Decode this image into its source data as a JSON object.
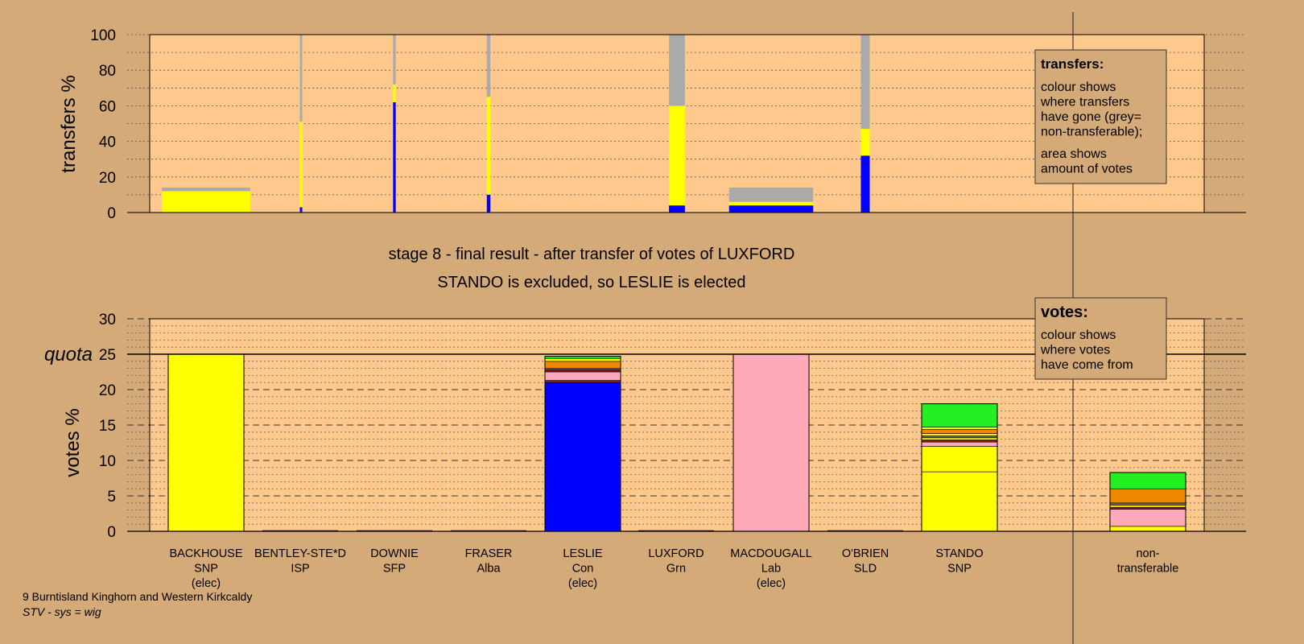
{
  "chart_data": {
    "type": "bar",
    "stage_line1": "stage 8 - final result - after transfer of votes of LUXFORD",
    "stage_line2": "STANDO is excluded, so LESLIE is elected",
    "colors": {
      "Con": "#0000ff",
      "SNP": "#ffff00",
      "Lab": "#ffaabb",
      "Grn": "#22ee22",
      "LD": "#ee8800",
      "other1": "#8b1a1a",
      "other2": "#666666",
      "nontransferable": "#aaaaaa",
      "plot_bg": "#ffc98e",
      "page_bg": "#d4aa78"
    },
    "candidates": [
      {
        "name": "BACKHOUSE",
        "party": "SNP",
        "status": "(elec)"
      },
      {
        "name": "BENTLEY-STE*D",
        "party": "ISP",
        "status": ""
      },
      {
        "name": "DOWNIE",
        "party": "SFP",
        "status": ""
      },
      {
        "name": "FRASER",
        "party": "Alba",
        "status": ""
      },
      {
        "name": "LESLIE",
        "party": "Con",
        "status": "(elec)"
      },
      {
        "name": "LUXFORD",
        "party": "Grn",
        "status": ""
      },
      {
        "name": "MACDOUGALL",
        "party": "Lab",
        "status": "(elec)"
      },
      {
        "name": "O'BRIEN",
        "party": "SLD",
        "status": ""
      },
      {
        "name": "STANDO",
        "party": "SNP",
        "status": ""
      },
      {
        "name": "non-",
        "party": "transferable",
        "status": ""
      }
    ],
    "transfers_chart": {
      "ylabel": "transfers %",
      "ylim": [
        0,
        100
      ],
      "yticks": [
        0,
        20,
        40,
        60,
        80,
        100
      ],
      "bars": [
        {
          "candidate": "BACKHOUSE",
          "width_share": 1.0,
          "segments": [
            {
              "party": "SNP",
              "value": 12
            },
            {
              "party": "nontransferable",
              "value": 2
            }
          ]
        },
        {
          "candidate": "BENTLEY-STE*D",
          "width_share": 0.02,
          "segments": [
            {
              "party": "Con",
              "value": 3
            },
            {
              "party": "SNP",
              "value": 48
            },
            {
              "party": "nontransferable",
              "value": 49
            }
          ]
        },
        {
          "candidate": "DOWNIE",
          "width_share": 0.03,
          "segments": [
            {
              "party": "Con",
              "value": 62
            },
            {
              "party": "SNP",
              "value": 10
            },
            {
              "party": "nontransferable",
              "value": 28
            }
          ]
        },
        {
          "candidate": "FRASER",
          "width_share": 0.04,
          "segments": [
            {
              "party": "Con",
              "value": 10
            },
            {
              "party": "SNP",
              "value": 55
            },
            {
              "party": "nontransferable",
              "value": 35
            }
          ]
        },
        {
          "candidate": "O'BRIEN",
          "width_share": 0.18,
          "segments": [
            {
              "party": "Con",
              "value": 4
            },
            {
              "party": "SNP",
              "value": 56
            },
            {
              "party": "nontransferable",
              "value": 40
            }
          ]
        },
        {
          "candidate": "MACDOUGALL",
          "width_share": 0.95,
          "segments": [
            {
              "party": "Con",
              "value": 4
            },
            {
              "party": "SNP",
              "value": 2
            },
            {
              "party": "nontransferable",
              "value": 8
            }
          ]
        },
        {
          "candidate": "STANDO",
          "width_share": 0.1,
          "segments": [
            {
              "party": "Con",
              "value": 32
            },
            {
              "party": "SNP",
              "value": 15
            },
            {
              "party": "nontransferable",
              "value": 53
            }
          ]
        }
      ]
    },
    "votes_chart": {
      "ylabel": "votes %",
      "quota_label": "quota",
      "quota": 25,
      "ylim": [
        0,
        30
      ],
      "yticks": [
        0,
        5,
        10,
        15,
        20,
        25,
        30
      ],
      "bars": [
        {
          "candidate": "BACKHOUSE",
          "segments": [
            {
              "party": "SNP",
              "value": 25.0
            }
          ]
        },
        {
          "candidate": "BENTLEY-STE*D",
          "segments": []
        },
        {
          "candidate": "DOWNIE",
          "segments": []
        },
        {
          "candidate": "FRASER",
          "segments": []
        },
        {
          "candidate": "LESLIE",
          "segments": [
            {
              "party": "Con",
              "value": 21.0
            },
            {
              "party": "other1",
              "value": 0.3
            },
            {
              "party": "Lab",
              "value": 1.2
            },
            {
              "party": "other1",
              "value": 0.3
            },
            {
              "party": "other2",
              "value": 0.2
            },
            {
              "party": "LD",
              "value": 1.0
            },
            {
              "party": "SNP",
              "value": 0.4
            },
            {
              "party": "Grn",
              "value": 0.3
            }
          ]
        },
        {
          "candidate": "LUXFORD",
          "segments": []
        },
        {
          "candidate": "MACDOUGALL",
          "segments": [
            {
              "party": "Lab",
              "value": 25.0
            }
          ]
        },
        {
          "candidate": "O'BRIEN",
          "segments": []
        },
        {
          "candidate": "STANDO",
          "segments": [
            {
              "party": "SNP",
              "value": 8.4
            },
            {
              "party": "SNP",
              "value": 3.6
            },
            {
              "party": "Lab",
              "value": 0.6
            },
            {
              "party": "other1",
              "value": 0.3
            },
            {
              "party": "SNP",
              "value": 0.3
            },
            {
              "party": "other2",
              "value": 0.3
            },
            {
              "party": "SNP",
              "value": 0.3
            },
            {
              "party": "LD",
              "value": 0.6
            },
            {
              "party": "SNP",
              "value": 0.3
            },
            {
              "party": "Grn",
              "value": 3.3
            }
          ]
        },
        {
          "candidate": "non-transferable",
          "segments": [
            {
              "party": "SNP",
              "value": 0.7
            },
            {
              "party": "Lab",
              "value": 2.4
            },
            {
              "party": "other1",
              "value": 0.3
            },
            {
              "party": "SNP",
              "value": 0.3
            },
            {
              "party": "other2",
              "value": 0.3
            },
            {
              "party": "LD",
              "value": 2.0
            },
            {
              "party": "Grn",
              "value": 2.3
            }
          ]
        }
      ]
    }
  },
  "legend_transfers": {
    "title": "transfers:",
    "lines1": [
      "colour shows",
      "where transfers",
      "have gone (grey=",
      "non-transferable);"
    ],
    "lines2": [
      "area shows",
      "amount of votes"
    ]
  },
  "legend_votes": {
    "title": "votes:",
    "lines": [
      "colour shows",
      "where votes",
      "have come from"
    ]
  },
  "footer": {
    "ward": "9 Burntisland Kinghorn and Western Kirkcaldy",
    "system": "STV - sys = wig"
  }
}
